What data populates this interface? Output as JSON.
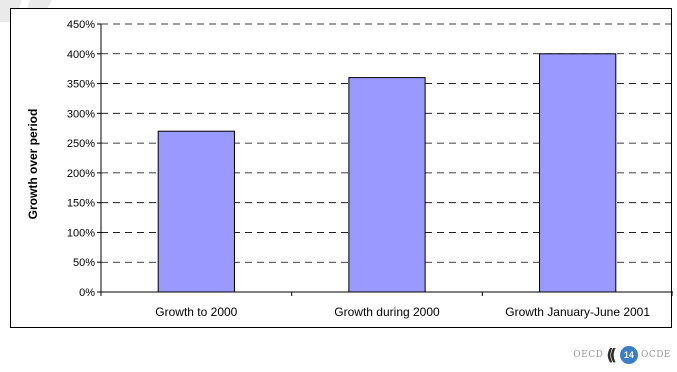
{
  "chart_data": {
    "type": "bar",
    "categories": [
      "Growth to 2000",
      "Growth during 2000",
      "Growth January-June 2001"
    ],
    "values": [
      270,
      360,
      400
    ],
    "value_unit": "%",
    "title": "",
    "xlabel": "",
    "ylabel": "Growth over period",
    "ylim": [
      0,
      450
    ],
    "ytick_step": 50,
    "yticks": [
      "0%",
      "50%",
      "100%",
      "150%",
      "200%",
      "250%",
      "300%",
      "350%",
      "400%",
      "450%"
    ],
    "grid": "horizontal dashed",
    "legend": "none",
    "bar_color": "#9999ff"
  },
  "footer": {
    "org_left": "OECD",
    "logo_icon": "oecd-logo-icon",
    "page_number": "14",
    "org_right": "OCDE"
  },
  "colors": {
    "bar": "#9999ff",
    "bar_border": "#000000",
    "grid": "#000000",
    "badge": "#3a7fc6"
  }
}
